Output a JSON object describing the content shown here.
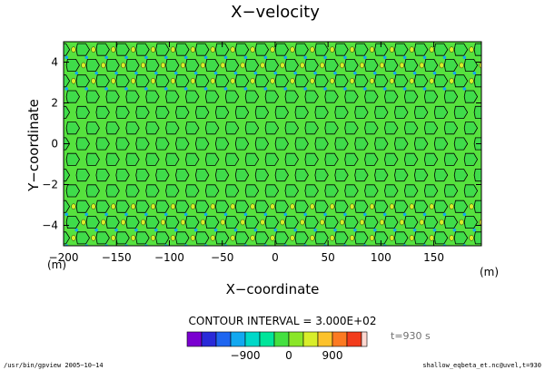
{
  "chart_data": {
    "type": "heatmap",
    "title": "X−velocity",
    "xlabel": "X−coordinate",
    "ylabel": "Y−coordinate",
    "x_unit": "(m)",
    "y_unit": "(m)",
    "xlim": [
      -200,
      195
    ],
    "ylim": [
      -5,
      5
    ],
    "x_ticks": [
      -200,
      -150,
      -100,
      -50,
      0,
      50,
      100,
      150
    ],
    "x_tick_labels": [
      "−200",
      "−150",
      "−100",
      "−50",
      "0",
      "50",
      "100",
      "150"
    ],
    "y_ticks": [
      -4,
      -2,
      0,
      2,
      4
    ],
    "y_tick_labels": [
      "−4",
      "−2",
      "0",
      "2",
      "4"
    ],
    "contour_interval_text": "CONTOUR INTERVAL = 3.000E+02",
    "contour_interval": 300,
    "colorbar": {
      "levels": [
        -1800,
        -1500,
        -1200,
        -900,
        -600,
        -300,
        0,
        300,
        600,
        900,
        1200,
        1500
      ],
      "colors": [
        "#7a00d0",
        "#2a2ad8",
        "#1f66f0",
        "#12a8f0",
        "#00d8c8",
        "#00e59a",
        "#44e040",
        "#8ae628",
        "#d8ee2a",
        "#fcc22c",
        "#fc7a22",
        "#f23c1c",
        "#ffd8d0"
      ],
      "labeled_ticks": [
        -900,
        0,
        900
      ],
      "labeled_tick_labels": [
        "−900",
        "0",
        "900"
      ]
    },
    "time_label": "t=930 s",
    "field_summary": {
      "background_range": [
        0,
        300
      ],
      "pattern": "periodic cellular contours, stronger near y = ±5 m"
    }
  },
  "footer": {
    "left": "/usr/bin/gpview  2005−10−14",
    "right": "shallow_eqbeta_et.nc@uvel,t=930"
  }
}
